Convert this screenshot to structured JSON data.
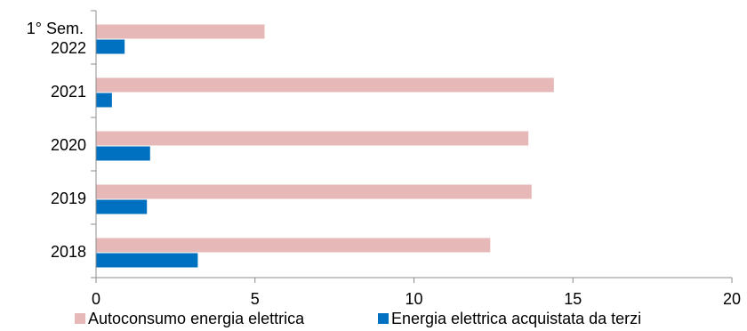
{
  "chart_data": {
    "type": "bar",
    "orientation": "horizontal",
    "categories": [
      [
        "1° Sem.",
        "2022"
      ],
      [
        "2021"
      ],
      [
        "2020"
      ],
      [
        "2019"
      ],
      [
        "2018"
      ]
    ],
    "series": [
      {
        "name": "Autoconsumo energia elettrica",
        "color": "#e6b8b7",
        "values": [
          5.3,
          14.4,
          13.6,
          13.7,
          12.4
        ]
      },
      {
        "name": "Energia elettrica acquistata da terzi",
        "color": "#0070c0",
        "values": [
          0.9,
          0.5,
          1.7,
          1.6,
          3.2
        ]
      }
    ],
    "xlim": [
      0,
      20
    ],
    "xticks": [
      "0",
      "5",
      "10",
      "15",
      "20"
    ],
    "grid": false,
    "legend": "bottom"
  }
}
